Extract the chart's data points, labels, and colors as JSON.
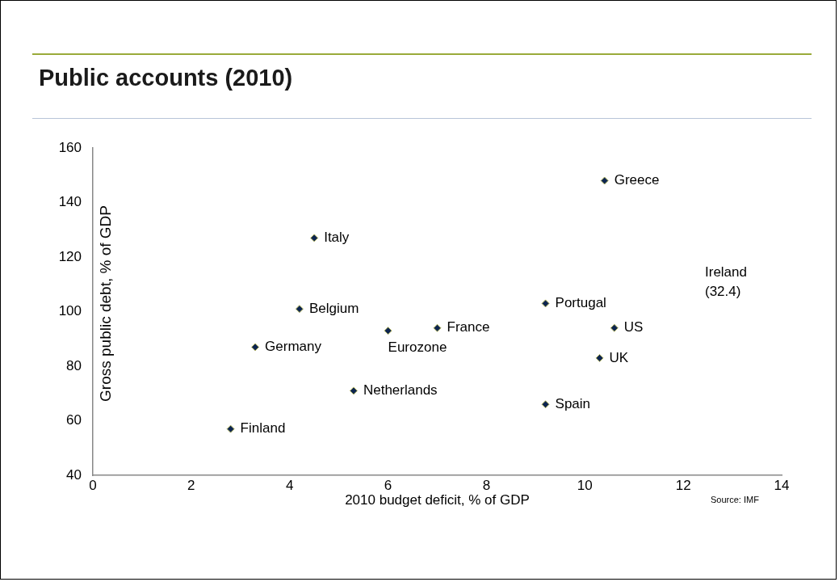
{
  "chart_data": {
    "type": "scatter",
    "title": "Public accounts (2010)",
    "xlabel": "2010 budget deficit, % of GDP",
    "ylabel": "Gross public debt, % of GDP",
    "x": [
      10.4,
      4.5,
      4.2,
      3.3,
      6.0,
      7.0,
      9.2,
      10.6,
      10.3,
      5.3,
      9.2,
      2.8
    ],
    "values": [
      148,
      127,
      101,
      87,
      93,
      94,
      103,
      94,
      83,
      71,
      66,
      57
    ],
    "color": "#0d2550",
    "marker": "diamond",
    "xlim": [
      0,
      14
    ],
    "xticks": [
      0,
      2,
      4,
      6,
      8,
      10,
      12,
      14
    ],
    "ylim": [
      40,
      160
    ],
    "yticks": [
      40,
      60,
      80,
      100,
      120,
      140,
      160
    ],
    "grid": false,
    "legend": false,
    "annotations": [
      {
        "text": "Greece",
        "x": 10.4,
        "y": 148
      },
      {
        "text": "Italy",
        "x": 4.5,
        "y": 127
      },
      {
        "text": "Belgium",
        "x": 4.2,
        "y": 101
      },
      {
        "text": "Germany",
        "x": 3.3,
        "y": 87
      },
      {
        "text": "Eurozone",
        "x": 6.0,
        "y": 93
      },
      {
        "text": "France",
        "x": 7.0,
        "y": 94
      },
      {
        "text": "Portugal",
        "x": 9.2,
        "y": 103
      },
      {
        "text": "US",
        "x": 10.6,
        "y": 94
      },
      {
        "text": "UK",
        "x": 10.3,
        "y": 83
      },
      {
        "text": "Netherlands",
        "x": 5.3,
        "y": 71
      },
      {
        "text": "Spain",
        "x": 9.2,
        "y": 66
      },
      {
        "text": "Finland",
        "x": 2.8,
        "y": 57
      },
      "Ireland\n(32.4)",
      "Source: IMF"
    ]
  }
}
